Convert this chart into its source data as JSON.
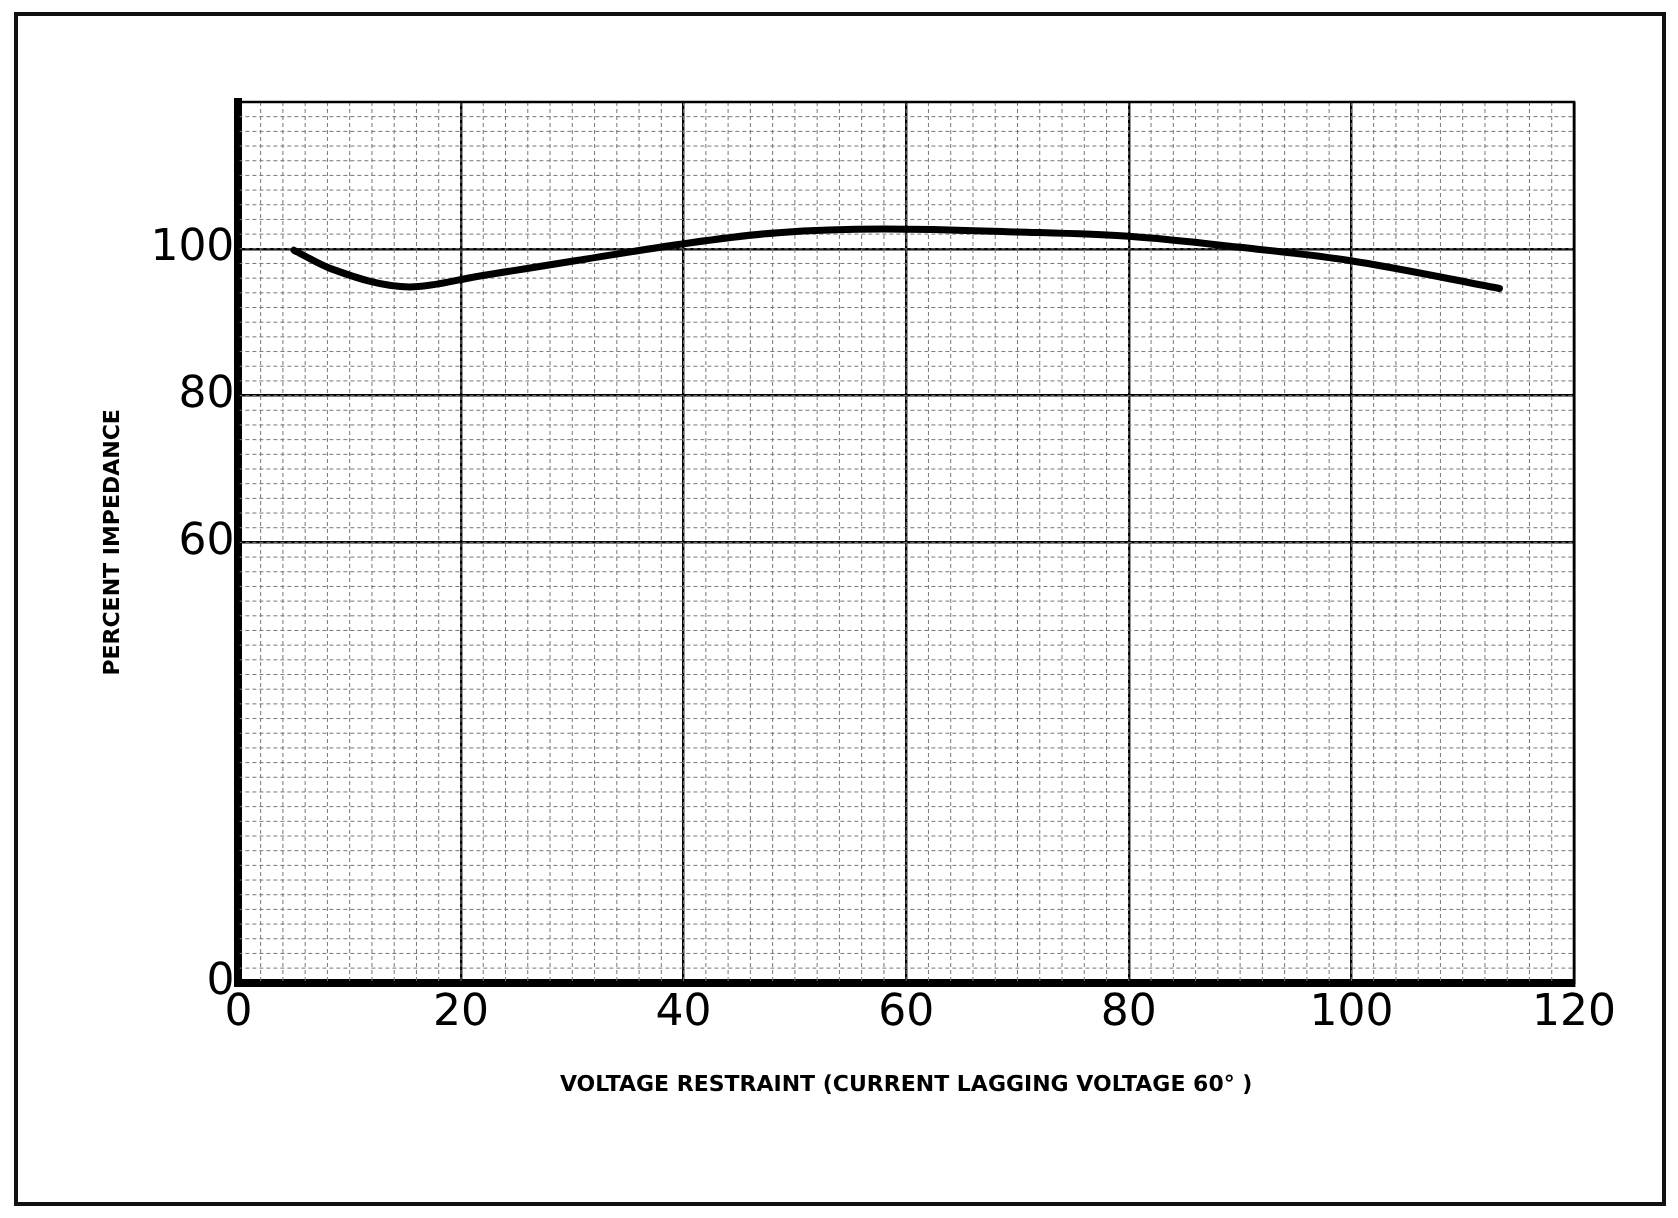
{
  "chart_data": {
    "type": "line",
    "xlabel": "VOLTAGE RESTRAINT (CURRENT LAGGING VOLTAGE 60° )",
    "ylabel": "PERCENT IMPEDANCE",
    "x": [
      5,
      8.3,
      15.4,
      21.7,
      30.4,
      40.5,
      48.5,
      58,
      70,
      80,
      90,
      99.8,
      113.3
    ],
    "series": [
      {
        "color": "#000000",
        "values": [
          99.8,
          97.3,
          94.8,
          96.3,
          98.4,
          100.8,
          102.2,
          102.7,
          102.3,
          101.7,
          100.2,
          98.4,
          94.6
        ]
      }
    ],
    "xlim": [
      0,
      120
    ],
    "xticks": [
      0,
      20,
      40,
      60,
      80,
      100,
      120
    ],
    "ylim": [
      0,
      120
    ],
    "yticks": [
      0,
      60,
      80,
      100
    ],
    "grid": true,
    "legend": false,
    "marker": "none",
    "line_style": "solid"
  }
}
